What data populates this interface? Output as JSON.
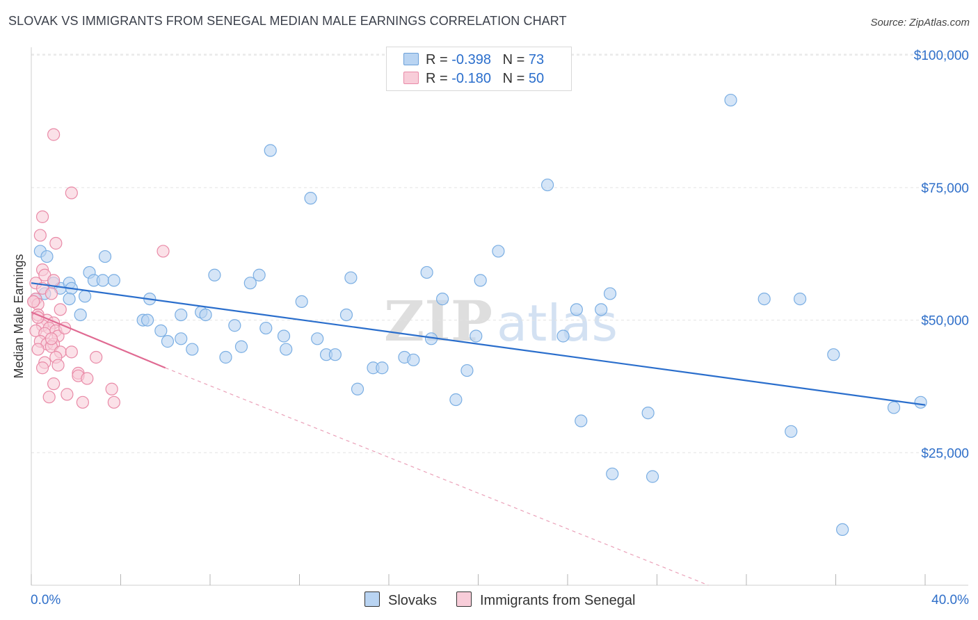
{
  "header": {
    "title": "SLOVAK VS IMMIGRANTS FROM SENEGAL MEDIAN MALE EARNINGS CORRELATION CHART",
    "source": "Source: ZipAtlas.com"
  },
  "watermark": {
    "part1": "ZIP",
    "part2": "atlas"
  },
  "legend": {
    "r_label": "R =",
    "n_label": "N =",
    "rows": [
      {
        "r": "-0.398",
        "n": "73"
      },
      {
        "r": "-0.180",
        "n": "50"
      }
    ]
  },
  "chart_data": {
    "type": "scatter",
    "title": "SLOVAK VS IMMIGRANTS FROM SENEGAL MEDIAN MALE EARNINGS CORRELATION CHART",
    "xlabel": "",
    "ylabel": "Median Male Earnings",
    "x_tick_labels": {
      "min": "0.0%",
      "max": "40.0%"
    },
    "y_tick_labels": [
      "$25,000",
      "$50,000",
      "$75,000",
      "$100,000"
    ],
    "y_ticks": [
      25000,
      50000,
      75000,
      100000
    ],
    "xlim": [
      0,
      40
    ],
    "ylim": [
      0,
      102000
    ],
    "grid": true,
    "series": [
      {
        "name": "Slovaks",
        "color": "#7aaee3",
        "fill": "#b9d4f2",
        "trend": {
          "x0": 0,
          "y0": 57000,
          "x1": 40,
          "y1": 34000
        },
        "points": [
          [
            0.4,
            63000
          ],
          [
            0.7,
            62000
          ],
          [
            0.6,
            55000
          ],
          [
            1.0,
            57000
          ],
          [
            1.3,
            56000
          ],
          [
            1.7,
            57000
          ],
          [
            1.8,
            56000
          ],
          [
            1.7,
            54000
          ],
          [
            2.2,
            51000
          ],
          [
            2.4,
            54500
          ],
          [
            2.6,
            59000
          ],
          [
            2.8,
            57500
          ],
          [
            3.2,
            57500
          ],
          [
            3.3,
            62000
          ],
          [
            3.7,
            57500
          ],
          [
            5.3,
            54000
          ],
          [
            5.0,
            50000
          ],
          [
            5.2,
            50000
          ],
          [
            5.8,
            48000
          ],
          [
            6.1,
            46000
          ],
          [
            6.7,
            46500
          ],
          [
            6.7,
            51000
          ],
          [
            7.2,
            44500
          ],
          [
            7.6,
            51500
          ],
          [
            7.8,
            51000
          ],
          [
            8.2,
            58500
          ],
          [
            8.7,
            43000
          ],
          [
            9.1,
            49000
          ],
          [
            9.4,
            45000
          ],
          [
            9.8,
            57000
          ],
          [
            10.2,
            58500
          ],
          [
            10.5,
            48500
          ],
          [
            10.7,
            82000
          ],
          [
            11.3,
            47000
          ],
          [
            11.4,
            44500
          ],
          [
            12.1,
            53500
          ],
          [
            12.5,
            73000
          ],
          [
            12.8,
            46500
          ],
          [
            13.2,
            43500
          ],
          [
            13.6,
            43500
          ],
          [
            14.1,
            51000
          ],
          [
            14.3,
            58000
          ],
          [
            14.6,
            37000
          ],
          [
            15.3,
            41000
          ],
          [
            15.7,
            41000
          ],
          [
            16.7,
            43000
          ],
          [
            17.1,
            42500
          ],
          [
            17.7,
            59000
          ],
          [
            17.9,
            46500
          ],
          [
            18.4,
            54000
          ],
          [
            19.0,
            35000
          ],
          [
            19.5,
            40500
          ],
          [
            19.9,
            47000
          ],
          [
            20.1,
            57500
          ],
          [
            20.9,
            63000
          ],
          [
            23.1,
            75500
          ],
          [
            23.8,
            47000
          ],
          [
            24.4,
            52000
          ],
          [
            24.6,
            31000
          ],
          [
            25.5,
            52000
          ],
          [
            25.9,
            55000
          ],
          [
            26.0,
            21000
          ],
          [
            27.6,
            32500
          ],
          [
            27.8,
            20500
          ],
          [
            31.3,
            91500
          ],
          [
            32.8,
            54000
          ],
          [
            34.0,
            29000
          ],
          [
            34.4,
            54000
          ],
          [
            35.9,
            43500
          ],
          [
            36.3,
            10500
          ],
          [
            38.6,
            33500
          ],
          [
            39.8,
            34500
          ],
          [
            0.2,
            54000
          ]
        ]
      },
      {
        "name": "Immigrants from Senegal",
        "color": "#e98aa7",
        "fill": "#f8cdd9",
        "trend": {
          "x0": 0,
          "y0": 51500,
          "x1": 6,
          "y1": 41000,
          "dashed_to_x": 30.3,
          "dashed_to_y": 0
        },
        "points": [
          [
            1.0,
            85000
          ],
          [
            1.8,
            74000
          ],
          [
            0.5,
            69500
          ],
          [
            0.4,
            66000
          ],
          [
            1.1,
            64500
          ],
          [
            5.9,
            63000
          ],
          [
            0.5,
            59500
          ],
          [
            0.6,
            58500
          ],
          [
            1.0,
            57500
          ],
          [
            0.2,
            57000
          ],
          [
            0.5,
            56000
          ],
          [
            0.9,
            55000
          ],
          [
            0.2,
            54000
          ],
          [
            0.1,
            53500
          ],
          [
            0.3,
            53000
          ],
          [
            1.3,
            52000
          ],
          [
            0.3,
            51000
          ],
          [
            0.7,
            50000
          ],
          [
            1.0,
            49500
          ],
          [
            0.5,
            49000
          ],
          [
            0.8,
            48500
          ],
          [
            1.1,
            48000
          ],
          [
            0.2,
            48000
          ],
          [
            0.6,
            47500
          ],
          [
            1.2,
            47000
          ],
          [
            0.4,
            46000
          ],
          [
            0.7,
            45500
          ],
          [
            1.0,
            45500
          ],
          [
            0.9,
            45000
          ],
          [
            0.3,
            44500
          ],
          [
            1.3,
            44000
          ],
          [
            1.8,
            44000
          ],
          [
            1.1,
            43000
          ],
          [
            2.9,
            43000
          ],
          [
            0.6,
            42000
          ],
          [
            1.2,
            41500
          ],
          [
            0.5,
            41000
          ],
          [
            2.1,
            40000
          ],
          [
            2.1,
            39500
          ],
          [
            2.5,
            39000
          ],
          [
            1.0,
            38000
          ],
          [
            3.6,
            37000
          ],
          [
            1.6,
            36000
          ],
          [
            0.8,
            35500
          ],
          [
            2.3,
            34500
          ],
          [
            3.7,
            34500
          ],
          [
            0.1,
            53500
          ],
          [
            0.9,
            46500
          ],
          [
            1.5,
            48500
          ],
          [
            0.3,
            50500
          ]
        ]
      }
    ]
  },
  "bottom_legend": [
    "Slovaks",
    "Immigrants from Senegal"
  ]
}
